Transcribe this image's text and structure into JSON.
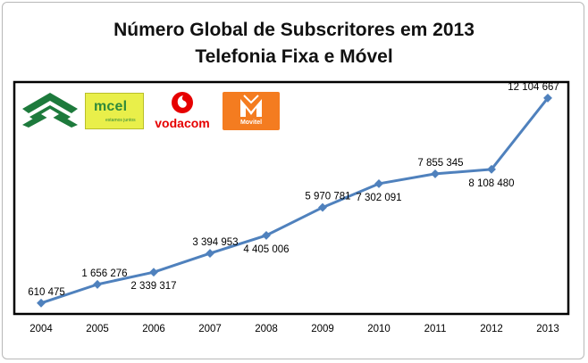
{
  "chart_data": {
    "type": "line",
    "title": "Número Global de Subscritores em 2013",
    "subtitle": "Telefonia Fixa e Móvel",
    "categories": [
      "2004",
      "2005",
      "2006",
      "2007",
      "2008",
      "2009",
      "2010",
      "2011",
      "2012",
      "2013"
    ],
    "values": [
      610475,
      1656276,
      2339317,
      3394953,
      4405006,
      5970781,
      7302091,
      7855345,
      8108480,
      12104667
    ],
    "value_labels": [
      "610 475",
      "1 656 276",
      "2 339 317",
      "3 394 953",
      "4 405 006",
      "5 970 781",
      "7 302 091",
      "7 855 345",
      "8 108 480",
      "12 104 667"
    ],
    "ylim": [
      0,
      13000000
    ],
    "grid": false,
    "legend": "none",
    "line_color": "#4f81bd"
  },
  "logos": {
    "mcel": {
      "word": "mcel",
      "tagline": "estamos juntos"
    },
    "vodacom": {
      "word": "vodacom"
    },
    "movitel": {
      "word": "Movitel"
    }
  }
}
